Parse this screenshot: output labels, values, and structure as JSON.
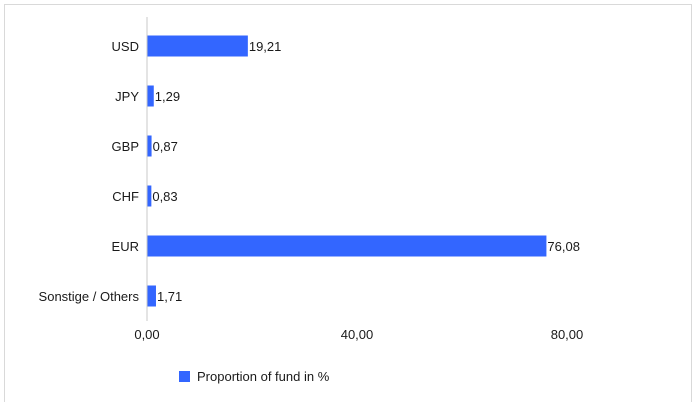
{
  "chart_data": {
    "type": "bar",
    "orientation": "horizontal",
    "categories": [
      "USD",
      "JPY",
      "GBP",
      "CHF",
      "EUR",
      "Sonstige / Others"
    ],
    "series": [
      {
        "name": "Proportion of fund in %",
        "values": [
          19.21,
          1.29,
          0.87,
          0.83,
          76.08,
          1.71
        ],
        "value_labels": [
          "19,21",
          "1,29",
          "0,87",
          "0,83",
          "76,08",
          "1,71"
        ]
      }
    ],
    "xlim": [
      0,
      80
    ],
    "xticks": [
      0,
      40,
      80
    ],
    "xtick_labels": [
      "0,00",
      "40,00",
      "80,00"
    ],
    "title": "",
    "xlabel": "",
    "ylabel": "",
    "grid": false,
    "legend_position": "bottom",
    "bar_color": "#3366ff"
  }
}
